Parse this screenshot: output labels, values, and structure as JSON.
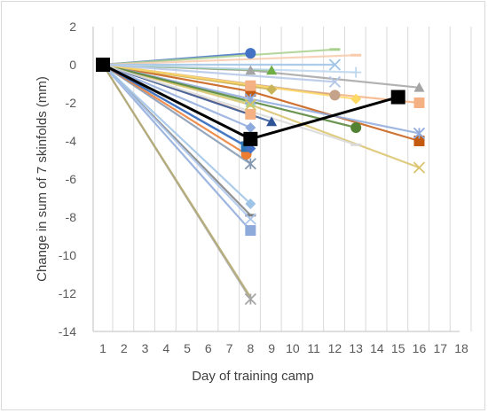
{
  "chart_data": {
    "type": "line",
    "title": "",
    "xlabel": "Day of training camp",
    "ylabel": "Change in sum of 7 skinfolds (mm)",
    "xlim": [
      1,
      18
    ],
    "ylim": [
      -14,
      2
    ],
    "x_ticks": [
      1,
      2,
      3,
      4,
      5,
      6,
      7,
      8,
      9,
      10,
      11,
      12,
      13,
      14,
      15,
      16,
      17,
      18
    ],
    "y_ticks": [
      2,
      0,
      -2,
      -4,
      -6,
      -8,
      -10,
      -12,
      -14
    ],
    "grid": "vertical",
    "legend": "none",
    "series": [
      {
        "color": "#a6a6a6",
        "marker": "asterisk",
        "points": [
          [
            1,
            0
          ],
          [
            8,
            -12.3
          ]
        ]
      },
      {
        "color": "#b4a96f",
        "marker": "none",
        "points": [
          [
            1,
            0
          ],
          [
            8,
            -12.2
          ]
        ]
      },
      {
        "color": "#7f7f7f",
        "marker": "dash",
        "points": [
          [
            1,
            0
          ],
          [
            8,
            -7.9
          ]
        ]
      },
      {
        "color": "#8eaadb",
        "marker": "square",
        "points": [
          [
            1,
            0
          ],
          [
            8,
            -8.7
          ]
        ]
      },
      {
        "color": "#a9c4eb",
        "marker": "x",
        "points": [
          [
            1,
            0
          ],
          [
            8,
            -8.1
          ]
        ]
      },
      {
        "color": "#9dc3e6",
        "marker": "diamond",
        "points": [
          [
            1,
            0
          ],
          [
            8,
            -7.3
          ]
        ]
      },
      {
        "color": "#8497b0",
        "marker": "asterisk",
        "points": [
          [
            1,
            0
          ],
          [
            8,
            -5.2
          ]
        ]
      },
      {
        "color": "#ed7d31",
        "marker": "circle",
        "points": [
          [
            1,
            0
          ],
          [
            7.8,
            -4.7
          ]
        ]
      },
      {
        "color": "#2e75b6",
        "marker": "square",
        "points": [
          [
            1,
            0
          ],
          [
            7.8,
            -4.3
          ]
        ]
      },
      {
        "color": "#4472c4",
        "marker": "diamond",
        "points": [
          [
            1,
            0
          ],
          [
            8,
            -4.4
          ]
        ]
      },
      {
        "color": "#a9d18e",
        "marker": "triangle",
        "points": [
          [
            1,
            0
          ],
          [
            8,
            -2.0
          ]
        ]
      },
      {
        "color": "#f4b183",
        "marker": "square",
        "points": [
          [
            1,
            0
          ],
          [
            8,
            -2.6
          ]
        ]
      },
      {
        "color": "#c55a11",
        "marker": "square",
        "points": [
          [
            1,
            0
          ],
          [
            8,
            -1.4
          ],
          [
            16,
            -4.0
          ]
        ]
      },
      {
        "color": "#8faadc",
        "marker": "asterisk",
        "points": [
          [
            1,
            0
          ],
          [
            8,
            -1.8
          ],
          [
            16,
            -3.6
          ]
        ]
      },
      {
        "color": "#a5a5a5",
        "marker": "triangle",
        "points": [
          [
            1,
            0
          ],
          [
            8,
            -0.3
          ],
          [
            16,
            -1.2
          ]
        ]
      },
      {
        "color": "#f4b183",
        "marker": "square",
        "points": [
          [
            1,
            0
          ],
          [
            8,
            -1.1
          ],
          [
            16,
            -2.0
          ]
        ]
      },
      {
        "color": "#d9c36b",
        "marker": "x",
        "points": [
          [
            1,
            0
          ],
          [
            8,
            -2.1
          ],
          [
            16,
            -5.4
          ]
        ]
      },
      {
        "color": "#4472c4",
        "marker": "circle",
        "points": [
          [
            1,
            0
          ],
          [
            8,
            0.6
          ]
        ]
      },
      {
        "color": "#70ad47",
        "marker": "triangle",
        "points": [
          [
            1,
            0
          ],
          [
            9,
            -0.3
          ]
        ]
      },
      {
        "color": "#c9b458",
        "marker": "diamond",
        "points": [
          [
            1,
            0
          ],
          [
            9,
            -1.3
          ]
        ]
      },
      {
        "color": "#2f5597",
        "marker": "triangle",
        "points": [
          [
            1,
            0
          ],
          [
            9,
            -3.0
          ]
        ]
      },
      {
        "color": "#8faadc",
        "marker": "diamond",
        "points": [
          [
            1,
            0
          ],
          [
            8,
            -3.3
          ]
        ]
      },
      {
        "color": "#548235",
        "marker": "circle",
        "points": [
          [
            1,
            0
          ],
          [
            13,
            -3.3
          ]
        ]
      },
      {
        "color": "#a9d18e",
        "marker": "dash",
        "points": [
          [
            1,
            0
          ],
          [
            12,
            0.8
          ]
        ]
      },
      {
        "color": "#f8cbad",
        "marker": "dash",
        "points": [
          [
            1,
            0
          ],
          [
            13,
            0.5
          ]
        ]
      },
      {
        "color": "#9dc3e6",
        "marker": "x",
        "points": [
          [
            1,
            0
          ],
          [
            12,
            0.0
          ]
        ]
      },
      {
        "color": "#bdd7ee",
        "marker": "plus",
        "points": [
          [
            1,
            0
          ],
          [
            13,
            -0.4
          ]
        ]
      },
      {
        "color": "#c5a28a",
        "marker": "circle",
        "points": [
          [
            1,
            0
          ],
          [
            12,
            -1.6
          ]
        ]
      },
      {
        "color": "#ffd966",
        "marker": "diamond",
        "points": [
          [
            1,
            0
          ],
          [
            13,
            -1.8
          ]
        ]
      },
      {
        "color": "#d9d9d9",
        "marker": "dash",
        "points": [
          [
            1,
            0
          ],
          [
            13,
            -4.2
          ]
        ]
      },
      {
        "color": "#b4c7e7",
        "marker": "x",
        "points": [
          [
            1,
            0
          ],
          [
            12,
            -0.9
          ]
        ]
      },
      {
        "color": "#000000",
        "marker": "square",
        "bold": true,
        "points": [
          [
            1,
            0
          ],
          [
            8,
            -3.9
          ],
          [
            15,
            -1.7
          ]
        ]
      }
    ]
  }
}
